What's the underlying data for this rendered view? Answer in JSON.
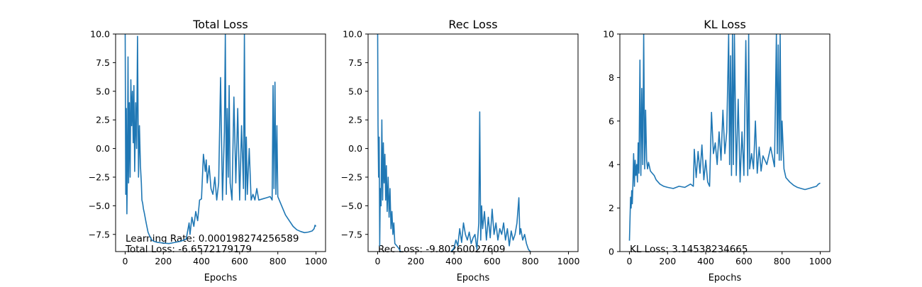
{
  "chart_data": [
    {
      "type": "line",
      "title": "Total Loss",
      "xlabel": "Epochs",
      "ylabel": "",
      "xlim": [
        -50,
        1050
      ],
      "ylim": [
        -9,
        10
      ],
      "xticks": [
        0,
        200,
        400,
        600,
        800,
        1000
      ],
      "xtick_labels": [
        "0",
        "200",
        "400",
        "600",
        "800",
        "1000"
      ],
      "yticks": [
        -7.5,
        -5,
        -2.5,
        0,
        2.5,
        5,
        7.5,
        10
      ],
      "ytick_labels": [
        "−7.5",
        "−5.0",
        "−2.5",
        "0.0",
        "2.5",
        "5.0",
        "7.5",
        "10.0"
      ],
      "line_color": "#1f77b4",
      "annotations": [
        "Learning Rate: 0.000198274256589",
        "Total Loss: -6.6572179179"
      ],
      "series": [
        {
          "x": [
            0,
            3,
            6,
            9,
            12,
            15,
            18,
            22,
            26,
            30,
            34,
            38,
            42,
            46,
            50,
            55,
            60,
            65,
            70,
            75,
            80,
            85,
            88,
            92,
            96,
            100,
            110,
            120,
            130,
            140,
            150,
            170,
            200,
            230,
            260,
            290,
            320,
            335,
            340,
            350,
            360,
            370,
            380,
            390,
            400,
            410,
            420,
            425,
            430,
            440,
            450,
            460,
            470,
            480,
            490,
            500,
            510,
            520,
            525,
            530,
            535,
            540,
            545,
            550,
            560,
            570,
            580,
            590,
            600,
            610,
            620,
            625,
            630,
            635,
            640,
            650,
            660,
            670,
            680,
            690,
            700,
            720,
            740,
            760,
            770,
            775,
            780,
            785,
            790,
            795,
            800,
            810,
            820,
            840,
            860,
            880,
            900,
            920,
            940,
            960,
            980,
            990,
            995,
            1000
          ],
          "y": [
            10,
            -4,
            3.5,
            -5.7,
            -1.5,
            8,
            -3,
            4,
            -2.5,
            6,
            2,
            5,
            0.5,
            5.5,
            -2,
            4,
            0,
            9.8,
            -2.5,
            2,
            -1.5,
            -3,
            -4.5,
            -4.8,
            -5.3,
            -5.6,
            -6.5,
            -7.3,
            -7.7,
            -8,
            -8.1,
            -8.2,
            -8.25,
            -8.3,
            -8.2,
            -8.1,
            -7.9,
            -6.5,
            -7.5,
            -6,
            -6.8,
            -5.5,
            -6.3,
            -4.5,
            -4.4,
            -0.5,
            -2,
            -1,
            -3,
            -1.5,
            -3.5,
            -4,
            -2.5,
            -4.5,
            -3,
            6.2,
            -4.5,
            1.5,
            10,
            -4,
            3.5,
            -2.5,
            5.5,
            -3,
            -4.5,
            4.5,
            -3,
            3.5,
            -4.5,
            2,
            -3.5,
            10,
            -4.5,
            1,
            -4,
            0,
            -4.5,
            -4,
            -4.5,
            -3.5,
            -4.5,
            -4.4,
            -4.3,
            -4.2,
            -4.5,
            5.5,
            -3.5,
            5.8,
            -4,
            2,
            -4.2,
            -4.6,
            -5,
            -5.8,
            -6.3,
            -6.8,
            -7.1,
            -7.25,
            -7.35,
            -7.3,
            -7.2,
            -7,
            -6.7,
            -6.8
          ]
        }
      ]
    },
    {
      "type": "line",
      "title": "Rec Loss",
      "xlabel": "Epochs",
      "ylabel": "",
      "xlim": [
        -50,
        1050
      ],
      "ylim": [
        -9,
        10
      ],
      "xticks": [
        0,
        200,
        400,
        600,
        800,
        1000
      ],
      "xtick_labels": [
        "0",
        "200",
        "400",
        "600",
        "800",
        "1000"
      ],
      "yticks": [
        -7.5,
        -5,
        -2.5,
        0,
        2.5,
        5,
        7.5,
        10
      ],
      "ytick_labels": [
        "−7.5",
        "−5.0",
        "−2.5",
        "0.0",
        "2.5",
        "5.0",
        "7.5",
        "10.0"
      ],
      "line_color": "#1f77b4",
      "annotations": [
        "Rec Loss: -9.80260027609"
      ],
      "series": [
        {
          "x": [
            0,
            2,
            5,
            8,
            11,
            14,
            18,
            22,
            26,
            30,
            34,
            38,
            42,
            46,
            50,
            55,
            60,
            65,
            70,
            75,
            80,
            85,
            90,
            100,
            110,
            120,
            130,
            380,
            400,
            410,
            420,
            430,
            440,
            450,
            460,
            470,
            480,
            490,
            500,
            510,
            520,
            530,
            535,
            540,
            545,
            550,
            560,
            570,
            580,
            590,
            600,
            610,
            620,
            630,
            640,
            650,
            660,
            670,
            680,
            690,
            700,
            710,
            720,
            730,
            740,
            745,
            750,
            760,
            770,
            780,
            790,
            800,
            820,
            840,
            850
          ],
          "y": [
            10,
            2,
            -2.5,
            1,
            -8.5,
            -3.5,
            -5,
            2.5,
            -4.5,
            0.5,
            -3,
            -0.5,
            -4.5,
            -1.5,
            -5.5,
            -2.5,
            -6,
            -3.5,
            -7,
            -5.5,
            -7.5,
            -6.5,
            -8.3,
            -8.5,
            -8.7,
            -9,
            -9.1,
            -9.1,
            -8.7,
            -8,
            -8.5,
            -7,
            -8.2,
            -6.5,
            -7.5,
            -8,
            -7.3,
            -8.3,
            -7.8,
            -7.5,
            -8.8,
            -6.5,
            3.2,
            -8,
            -5,
            -7,
            -5.5,
            -8,
            -6,
            -7.8,
            -5.3,
            -7.5,
            -6.5,
            -8,
            -7,
            -7.5,
            -6.5,
            -8,
            -7,
            -8.5,
            -7.2,
            -8,
            -7.5,
            -6.5,
            -4.3,
            -7.5,
            -7,
            -8,
            -7.5,
            -8.3,
            -8.8,
            -9,
            -9.1,
            -9.2,
            -9.2
          ]
        }
      ]
    },
    {
      "type": "line",
      "title": "KL Loss",
      "xlabel": "Epochs",
      "ylabel": "",
      "xlim": [
        -50,
        1050
      ],
      "ylim": [
        0,
        10
      ],
      "xticks": [
        0,
        200,
        400,
        600,
        800,
        1000
      ],
      "xtick_labels": [
        "0",
        "200",
        "400",
        "600",
        "800",
        "1000"
      ],
      "yticks": [
        0,
        2,
        4,
        6,
        8,
        10
      ],
      "ytick_labels": [
        "0",
        "2",
        "4",
        "6",
        "8",
        "10"
      ],
      "line_color": "#1f77b4",
      "annotations": [
        "KL Loss: 3.14538234665"
      ],
      "series": [
        {
          "x": [
            0,
            3,
            6,
            9,
            12,
            15,
            18,
            22,
            26,
            30,
            34,
            38,
            42,
            46,
            50,
            55,
            60,
            65,
            70,
            75,
            80,
            85,
            90,
            95,
            100,
            110,
            120,
            130,
            140,
            160,
            180,
            200,
            230,
            260,
            290,
            320,
            335,
            340,
            350,
            360,
            370,
            380,
            390,
            400,
            410,
            420,
            430,
            440,
            450,
            460,
            470,
            480,
            490,
            500,
            510,
            520,
            525,
            530,
            535,
            540,
            545,
            550,
            560,
            570,
            580,
            590,
            600,
            610,
            620,
            625,
            630,
            640,
            650,
            660,
            670,
            680,
            690,
            700,
            720,
            740,
            760,
            770,
            775,
            780,
            785,
            790,
            795,
            800,
            810,
            820,
            840,
            860,
            880,
            900,
            920,
            940,
            960,
            980,
            990,
            1000
          ],
          "y": [
            0.5,
            1.5,
            2.5,
            2,
            2.8,
            2.2,
            3,
            4.5,
            3,
            4.2,
            3.5,
            4,
            3.2,
            5,
            3.6,
            8.8,
            3.5,
            7.5,
            4,
            10,
            3.8,
            6.5,
            4.2,
            3.8,
            4.1,
            3.7,
            3.6,
            3.5,
            3.3,
            3.1,
            3.0,
            2.95,
            2.9,
            3.0,
            2.95,
            3.1,
            3.0,
            4.7,
            3.4,
            4.6,
            3.6,
            4.9,
            3.3,
            4.2,
            3.2,
            3.0,
            6.4,
            4.5,
            5.0,
            4.0,
            5.5,
            4.2,
            6.5,
            4.5,
            5.5,
            10,
            4.0,
            9,
            3.5,
            10,
            4,
            10,
            3.5,
            7,
            3.2,
            5.5,
            3.5,
            9.7,
            3.5,
            10,
            3.8,
            4.5,
            3.8,
            6,
            3.6,
            4.8,
            3.7,
            4.4,
            4.0,
            4.8,
            3.9,
            10,
            4.5,
            9.5,
            4.2,
            10,
            4.2,
            6,
            3.8,
            3.4,
            3.2,
            3.05,
            2.95,
            2.9,
            2.85,
            2.9,
            2.95,
            3.0,
            3.1,
            3.15
          ]
        }
      ]
    }
  ]
}
